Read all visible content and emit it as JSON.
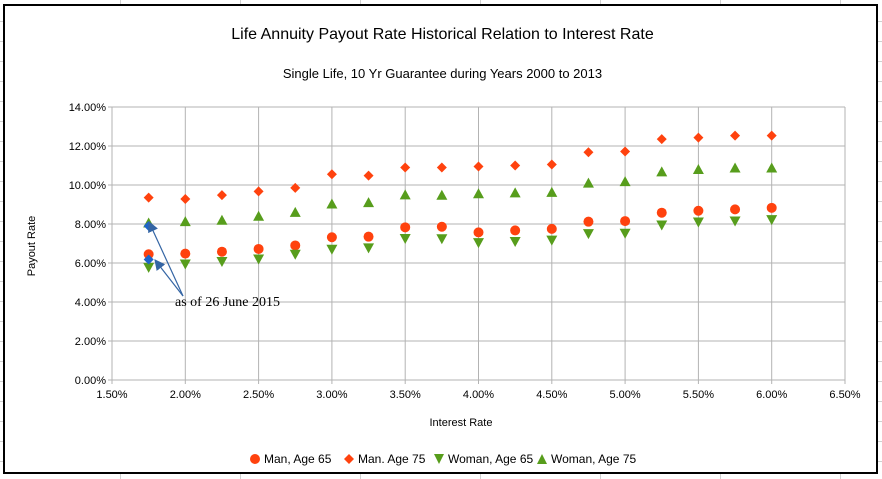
{
  "chart_data": {
    "type": "scatter",
    "title": "Life Annuity Payout Rate Historical Relation to Interest Rate",
    "subtitle": "Single Life, 10 Yr Guarantee during Years 2000 to 2013",
    "xlabel": "Interest Rate",
    "ylabel": "Payout Rate",
    "xlim": [
      0.015,
      0.065
    ],
    "ylim": [
      0,
      0.14
    ],
    "x_ticks": [
      0.015,
      0.02,
      0.025,
      0.03,
      0.035,
      0.04,
      0.045,
      0.05,
      0.055,
      0.06,
      0.065
    ],
    "y_ticks": [
      0,
      0.02,
      0.04,
      0.06,
      0.08,
      0.1,
      0.12,
      0.14
    ],
    "x_tick_labels": [
      "1.50%",
      "2.00%",
      "2.50%",
      "3.00%",
      "3.50%",
      "4.00%",
      "4.50%",
      "5.00%",
      "5.50%",
      "6.00%",
      "6.50%"
    ],
    "y_tick_labels": [
      "0.00%",
      "2.00%",
      "4.00%",
      "6.00%",
      "8.00%",
      "10.00%",
      "12.00%",
      "14.00%"
    ],
    "grid": true,
    "legend_position": "bottom",
    "x": [
      0.0175,
      0.02,
      0.0225,
      0.025,
      0.0275,
      0.03,
      0.0325,
      0.035,
      0.0375,
      0.04,
      0.0425,
      0.045,
      0.0475,
      0.05,
      0.0525,
      0.055,
      0.0575,
      0.06
    ],
    "series": [
      {
        "name": "Man, Age 65",
        "marker": "circle",
        "color": "#ff420e",
        "values": [
          0.0645,
          0.0648,
          0.0658,
          0.0672,
          0.069,
          0.0732,
          0.0735,
          0.0783,
          0.0786,
          0.0757,
          0.0767,
          0.0775,
          0.0812,
          0.0815,
          0.0858,
          0.0868,
          0.0875,
          0.0883
        ]
      },
      {
        "name": "Man. Age 75",
        "marker": "diamond",
        "color": "#ff420e",
        "values": [
          0.0935,
          0.0928,
          0.0948,
          0.0967,
          0.0985,
          0.1055,
          0.1048,
          0.109,
          0.109,
          0.1095,
          0.11,
          0.1105,
          0.1168,
          0.1172,
          0.1235,
          0.1243,
          0.1253,
          0.1253
        ]
      },
      {
        "name": "Woman, Age 65",
        "marker": "triangle-down",
        "color": "#579d1c",
        "values": [
          0.0575,
          0.0592,
          0.0605,
          0.0618,
          0.0642,
          0.0668,
          0.0675,
          0.0723,
          0.0722,
          0.0702,
          0.0708,
          0.0715,
          0.0748,
          0.075,
          0.0792,
          0.0808,
          0.0813,
          0.082
        ]
      },
      {
        "name": "Woman, Age 75",
        "marker": "triangle-up",
        "color": "#579d1c",
        "values": [
          0.0808,
          0.0815,
          0.0822,
          0.0842,
          0.0862,
          0.0905,
          0.0912,
          0.0952,
          0.095,
          0.0958,
          0.0962,
          0.0965,
          0.1012,
          0.102,
          0.107,
          0.1082,
          0.109,
          0.109
        ]
      }
    ],
    "highlight_points": [
      {
        "x": 0.0175,
        "y": 0.079,
        "color": "#1e64c8"
      },
      {
        "x": 0.0175,
        "y": 0.0618,
        "color": "#1e64c8"
      }
    ],
    "annotation": {
      "text": "as of 26 June 2015",
      "color": "#3465a4"
    }
  }
}
